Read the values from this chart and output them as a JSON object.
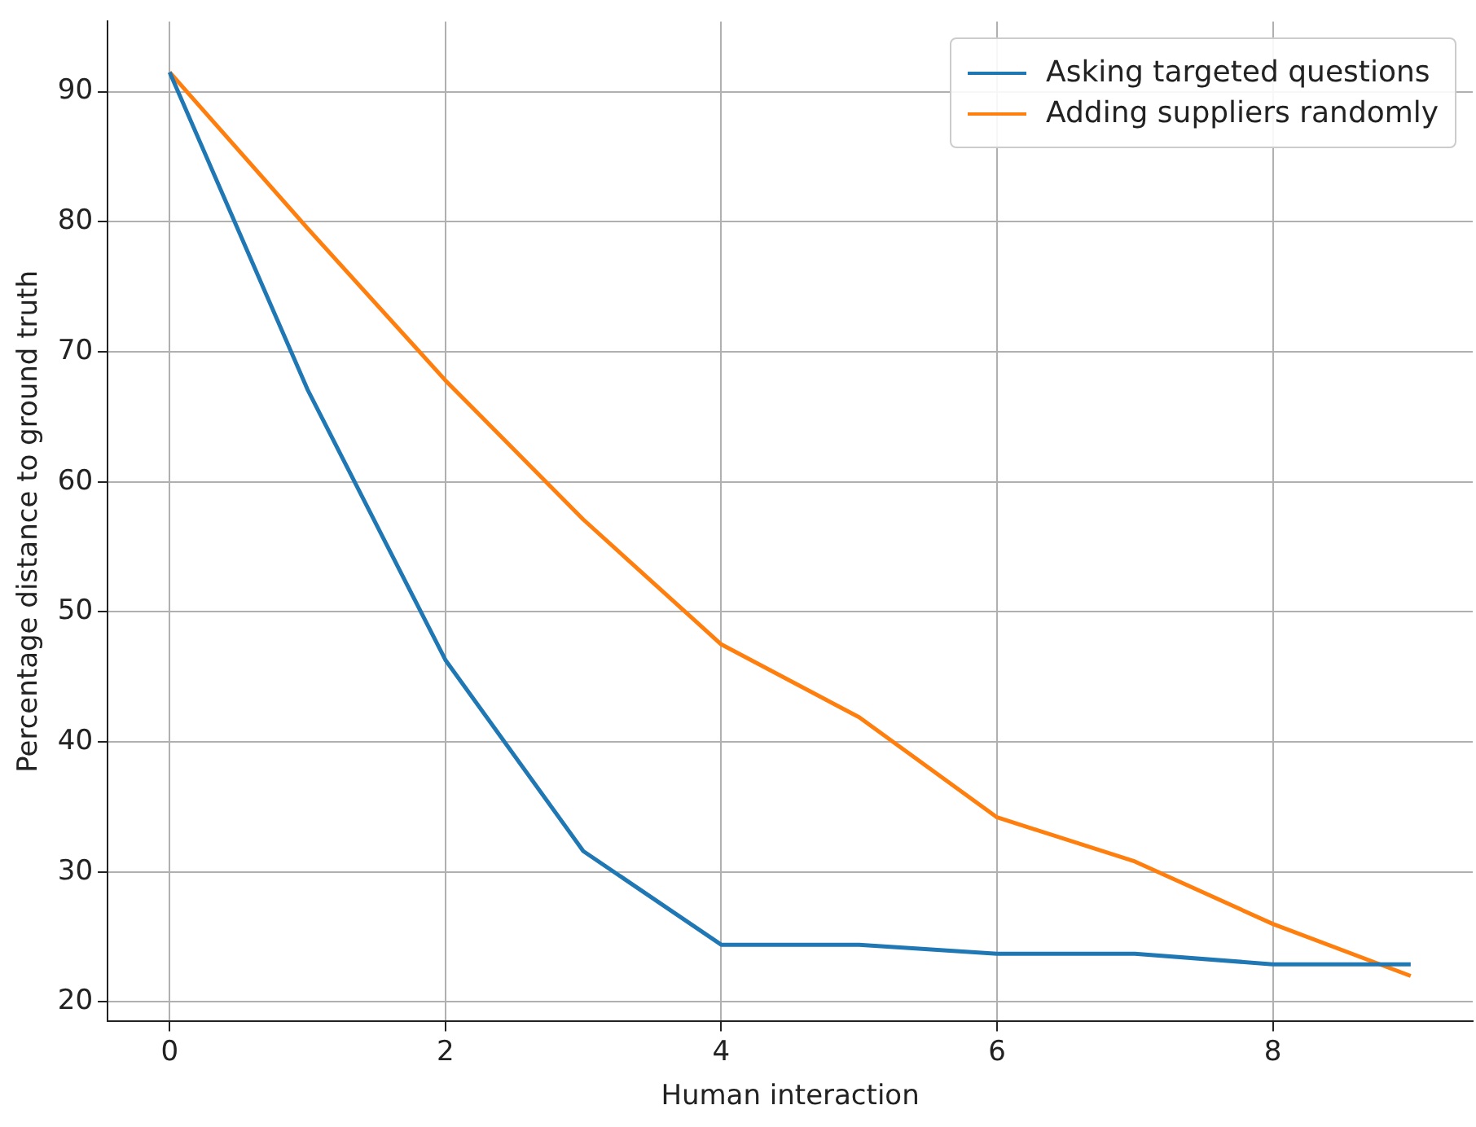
{
  "chart_data": {
    "type": "line",
    "xlabel": "Human interaction",
    "ylabel": "Percentage distance to ground truth",
    "x": [
      0,
      1,
      2,
      3,
      4,
      5,
      6,
      7,
      8,
      9
    ],
    "series": [
      {
        "name": "Asking targeted questions",
        "color": "#1f77b4",
        "values": [
          91.5,
          67.1,
          46.3,
          31.6,
          24.4,
          24.4,
          23.7,
          23.7,
          22.9,
          22.9
        ]
      },
      {
        "name": "Adding suppliers randomly",
        "color": "#ff7f0e",
        "values": [
          91.5,
          79.5,
          67.8,
          57.1,
          47.5,
          41.9,
          34.2,
          30.8,
          26,
          22
        ]
      }
    ],
    "xlim": [
      -0.45,
      9.45
    ],
    "ylim": [
      18.5,
      95.4
    ],
    "xticks": [
      0,
      2,
      4,
      6,
      8
    ],
    "yticks": [
      20,
      30,
      40,
      50,
      60,
      70,
      80,
      90
    ],
    "grid": true,
    "legend": "top right",
    "marker": "none",
    "line_style": "solid"
  }
}
